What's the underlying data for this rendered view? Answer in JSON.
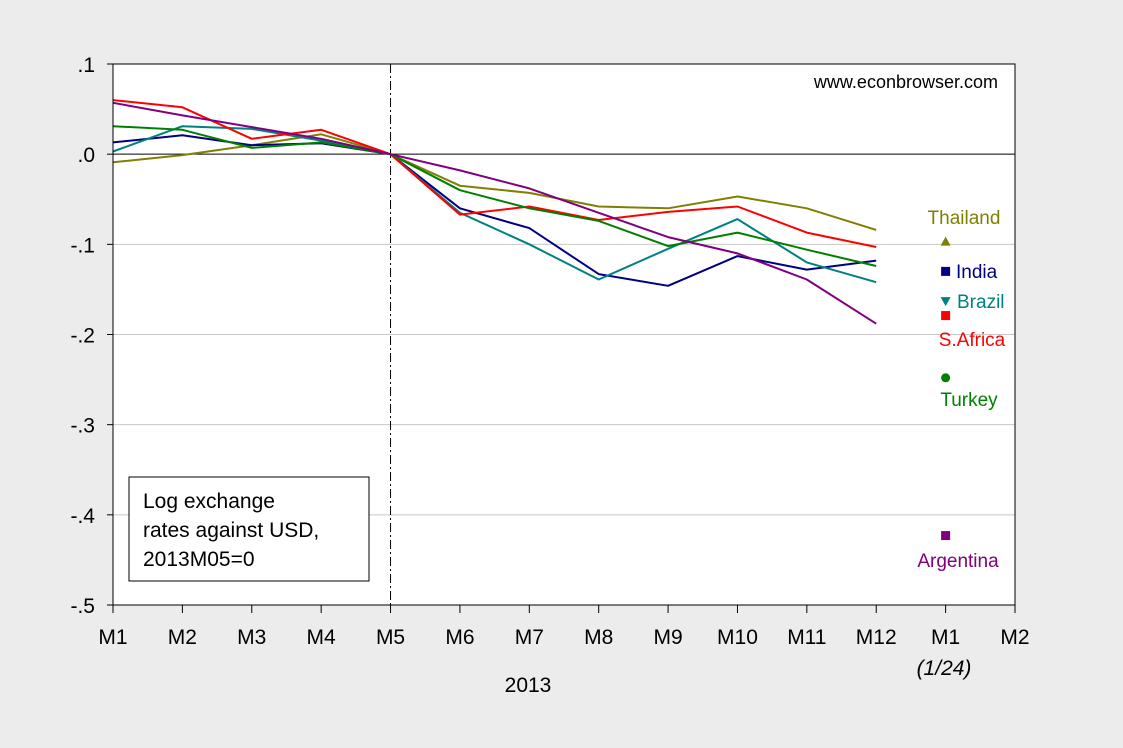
{
  "chart_data": {
    "type": "line",
    "title": "",
    "xlabel": "2013",
    "ylabel": "",
    "ylim": [
      -0.5,
      0.1
    ],
    "x_categories": [
      "M1",
      "M2",
      "M3",
      "M4",
      "M5",
      "M6",
      "M7",
      "M8",
      "M9",
      "M10",
      "M11",
      "M12",
      "M1",
      "M2"
    ],
    "x_sublabel": "(1/24)",
    "y_ticks": [
      0.1,
      0.0,
      -0.1,
      -0.2,
      -0.3,
      -0.4,
      -0.5
    ],
    "y_tick_labels": [
      ".1",
      ".0",
      "-.1",
      "-.2",
      "-.3",
      "-.4",
      "-.5"
    ],
    "grid": true,
    "vertical_marker_at": "M5",
    "source_note": "www.econbrowser.com",
    "annotation_box": [
      "Log exchange",
      "rates against USD,",
      "2013M05=0"
    ],
    "series": [
      {
        "name": "Thailand",
        "color": "#808000",
        "values": [
          -0.009,
          -0.001,
          0.01,
          0.022,
          0.0,
          -0.035,
          -0.043,
          -0.058,
          -0.06,
          -0.047,
          -0.06,
          -0.084
        ],
        "endpoint": -0.097,
        "marker": "triangle-up"
      },
      {
        "name": "India",
        "color": "#000080",
        "values": [
          0.013,
          0.021,
          0.01,
          0.012,
          0.0,
          -0.06,
          -0.082,
          -0.133,
          -0.146,
          -0.113,
          -0.128,
          -0.118
        ],
        "endpoint": -0.13,
        "marker": "square"
      },
      {
        "name": "Brazil",
        "color": "#008080",
        "values": [
          0.003,
          0.031,
          0.028,
          0.015,
          0.0,
          -0.065,
          -0.1,
          -0.139,
          -0.105,
          -0.072,
          -0.12,
          -0.142
        ],
        "endpoint": -0.163,
        "marker": "triangle-down"
      },
      {
        "name": "S.Africa",
        "color": "#ff0000",
        "values": [
          0.06,
          0.052,
          0.017,
          0.027,
          0.0,
          -0.067,
          -0.058,
          -0.073,
          -0.064,
          -0.058,
          -0.087,
          -0.103
        ],
        "endpoint": -0.179,
        "marker": "square"
      },
      {
        "name": "Turkey",
        "color": "#008000",
        "values": [
          0.031,
          0.027,
          0.007,
          0.013,
          0.0,
          -0.04,
          -0.06,
          -0.074,
          -0.102,
          -0.087,
          -0.106,
          -0.124
        ],
        "endpoint": -0.248,
        "marker": "circle"
      },
      {
        "name": "Argentina",
        "color": "#800080",
        "values": [
          0.057,
          0.043,
          0.03,
          0.017,
          0.0,
          -0.018,
          -0.038,
          -0.065,
          -0.092,
          -0.11,
          -0.139,
          -0.188
        ],
        "endpoint": -0.423,
        "marker": "square"
      }
    ]
  }
}
